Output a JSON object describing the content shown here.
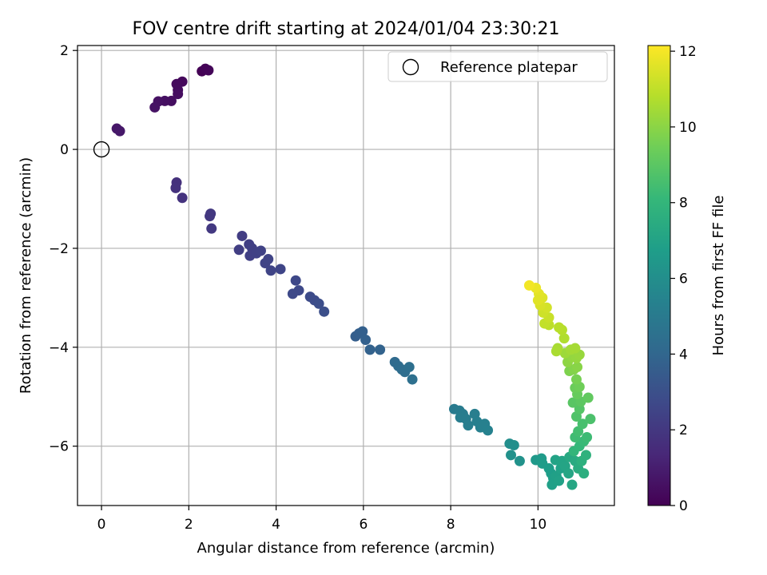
{
  "chart_data": {
    "type": "scatter",
    "title": "FOV centre drift starting at 2024/01/04 23:30:21",
    "xlabel": "Angular distance from reference (arcmin)",
    "ylabel": "Rotation from reference (arcmin)",
    "xlim": [
      -0.55,
      11.75
    ],
    "ylim": [
      -7.2,
      2.1
    ],
    "xticks": [
      0,
      2,
      4,
      6,
      8,
      10
    ],
    "yticks": [
      2,
      0,
      -2,
      -4,
      -6
    ],
    "grid": true,
    "legend": {
      "placement": "top-right",
      "label": "Reference platepar"
    },
    "reference_point": {
      "x": 0,
      "y": 0
    },
    "colorbar": {
      "label": "Hours from first FF file",
      "min": 0,
      "max": 12.15,
      "ticks": [
        0,
        2,
        4,
        6,
        8,
        10,
        12
      ],
      "colormap": [
        "#440154",
        "#482878",
        "#3e4989",
        "#31688e",
        "#26828e",
        "#1f9e89",
        "#35b779",
        "#6ece58",
        "#b5de2b",
        "#fde725"
      ]
    },
    "points": [
      {
        "x": 2.3,
        "y": 1.58,
        "c": 0.05
      },
      {
        "x": 2.38,
        "y": 1.63,
        "c": 0.1
      },
      {
        "x": 2.45,
        "y": 1.6,
        "c": 0.15
      },
      {
        "x": 1.85,
        "y": 1.37,
        "c": 0.25
      },
      {
        "x": 1.72,
        "y": 1.32,
        "c": 0.3
      },
      {
        "x": 1.75,
        "y": 1.2,
        "c": 0.35
      },
      {
        "x": 1.75,
        "y": 1.12,
        "c": 0.4
      },
      {
        "x": 1.6,
        "y": 0.98,
        "c": 0.45
      },
      {
        "x": 1.45,
        "y": 0.98,
        "c": 0.5
      },
      {
        "x": 1.3,
        "y": 0.97,
        "c": 0.55
      },
      {
        "x": 1.22,
        "y": 0.85,
        "c": 0.6
      },
      {
        "x": 0.35,
        "y": 0.42,
        "c": 0.75
      },
      {
        "x": 0.42,
        "y": 0.37,
        "c": 0.8
      },
      {
        "x": 1.72,
        "y": -0.67,
        "c": 1.7
      },
      {
        "x": 1.7,
        "y": -0.78,
        "c": 1.75
      },
      {
        "x": 1.85,
        "y": -0.98,
        "c": 1.8
      },
      {
        "x": 2.5,
        "y": -1.3,
        "c": 2.0
      },
      {
        "x": 2.48,
        "y": -1.35,
        "c": 2.02
      },
      {
        "x": 2.52,
        "y": -1.6,
        "c": 2.05
      },
      {
        "x": 3.22,
        "y": -1.75,
        "c": 2.2
      },
      {
        "x": 3.15,
        "y": -2.03,
        "c": 2.25
      },
      {
        "x": 3.38,
        "y": -1.92,
        "c": 2.3
      },
      {
        "x": 3.45,
        "y": -2.0,
        "c": 2.32
      },
      {
        "x": 3.4,
        "y": -2.15,
        "c": 2.35
      },
      {
        "x": 3.55,
        "y": -2.1,
        "c": 2.38
      },
      {
        "x": 3.65,
        "y": -2.05,
        "c": 2.4
      },
      {
        "x": 3.75,
        "y": -2.3,
        "c": 2.45
      },
      {
        "x": 3.82,
        "y": -2.22,
        "c": 2.48
      },
      {
        "x": 3.88,
        "y": -2.45,
        "c": 2.5
      },
      {
        "x": 4.1,
        "y": -2.42,
        "c": 2.55
      },
      {
        "x": 4.45,
        "y": -2.65,
        "c": 2.65
      },
      {
        "x": 4.52,
        "y": -2.85,
        "c": 2.7
      },
      {
        "x": 4.38,
        "y": -2.92,
        "c": 2.72
      },
      {
        "x": 4.78,
        "y": -2.98,
        "c": 2.8
      },
      {
        "x": 4.88,
        "y": -3.05,
        "c": 2.85
      },
      {
        "x": 4.98,
        "y": -3.12,
        "c": 2.9
      },
      {
        "x": 5.1,
        "y": -3.28,
        "c": 2.95
      },
      {
        "x": 5.82,
        "y": -3.78,
        "c": 3.6
      },
      {
        "x": 5.9,
        "y": -3.72,
        "c": 3.65
      },
      {
        "x": 5.98,
        "y": -3.68,
        "c": 3.7
      },
      {
        "x": 6.05,
        "y": -3.85,
        "c": 3.75
      },
      {
        "x": 6.15,
        "y": -4.05,
        "c": 3.8
      },
      {
        "x": 6.38,
        "y": -4.05,
        "c": 3.85
      },
      {
        "x": 6.72,
        "y": -4.3,
        "c": 4.2
      },
      {
        "x": 6.8,
        "y": -4.38,
        "c": 4.25
      },
      {
        "x": 6.88,
        "y": -4.45,
        "c": 4.3
      },
      {
        "x": 6.95,
        "y": -4.5,
        "c": 4.35
      },
      {
        "x": 7.05,
        "y": -4.4,
        "c": 4.4
      },
      {
        "x": 7.12,
        "y": -4.65,
        "c": 4.45
      },
      {
        "x": 8.08,
        "y": -5.25,
        "c": 5.0
      },
      {
        "x": 8.2,
        "y": -5.28,
        "c": 5.05
      },
      {
        "x": 8.28,
        "y": -5.35,
        "c": 5.1
      },
      {
        "x": 8.22,
        "y": -5.42,
        "c": 5.12
      },
      {
        "x": 8.35,
        "y": -5.45,
        "c": 5.15
      },
      {
        "x": 8.4,
        "y": -5.58,
        "c": 5.18
      },
      {
        "x": 8.55,
        "y": -5.35,
        "c": 5.2
      },
      {
        "x": 8.6,
        "y": -5.5,
        "c": 5.25
      },
      {
        "x": 8.68,
        "y": -5.62,
        "c": 5.28
      },
      {
        "x": 8.78,
        "y": -5.55,
        "c": 5.3
      },
      {
        "x": 8.85,
        "y": -5.68,
        "c": 5.35
      },
      {
        "x": 9.35,
        "y": -5.95,
        "c": 6.0
      },
      {
        "x": 9.45,
        "y": -5.98,
        "c": 6.05
      },
      {
        "x": 9.38,
        "y": -6.18,
        "c": 6.1
      },
      {
        "x": 9.58,
        "y": -6.3,
        "c": 6.15
      },
      {
        "x": 9.95,
        "y": -6.28,
        "c": 6.5
      },
      {
        "x": 10.08,
        "y": -6.25,
        "c": 6.6
      },
      {
        "x": 10.1,
        "y": -6.35,
        "c": 6.65
      },
      {
        "x": 10.25,
        "y": -6.45,
        "c": 6.7
      },
      {
        "x": 10.3,
        "y": -6.55,
        "c": 6.75
      },
      {
        "x": 10.35,
        "y": -6.65,
        "c": 6.8
      },
      {
        "x": 10.32,
        "y": -6.78,
        "c": 6.85
      },
      {
        "x": 10.42,
        "y": -6.6,
        "c": 6.88
      },
      {
        "x": 10.48,
        "y": -6.7,
        "c": 6.92
      },
      {
        "x": 10.52,
        "y": -6.45,
        "c": 6.95
      },
      {
        "x": 10.4,
        "y": -6.28,
        "c": 7.0
      },
      {
        "x": 10.55,
        "y": -6.3,
        "c": 7.05
      },
      {
        "x": 10.62,
        "y": -6.4,
        "c": 7.1
      },
      {
        "x": 10.7,
        "y": -6.55,
        "c": 7.15
      },
      {
        "x": 10.78,
        "y": -6.78,
        "c": 7.2
      },
      {
        "x": 10.72,
        "y": -6.22,
        "c": 7.3
      },
      {
        "x": 10.85,
        "y": -6.3,
        "c": 7.4
      },
      {
        "x": 10.92,
        "y": -6.45,
        "c": 7.5
      },
      {
        "x": 11.05,
        "y": -6.55,
        "c": 7.6
      },
      {
        "x": 11.0,
        "y": -6.3,
        "c": 7.7
      },
      {
        "x": 11.1,
        "y": -6.18,
        "c": 7.8
      },
      {
        "x": 10.82,
        "y": -6.1,
        "c": 8.0
      },
      {
        "x": 10.95,
        "y": -6.0,
        "c": 8.1
      },
      {
        "x": 11.05,
        "y": -5.9,
        "c": 8.2
      },
      {
        "x": 11.12,
        "y": -5.82,
        "c": 8.3
      },
      {
        "x": 10.85,
        "y": -5.82,
        "c": 8.35
      },
      {
        "x": 10.92,
        "y": -5.7,
        "c": 8.45
      },
      {
        "x": 11.02,
        "y": -5.55,
        "c": 8.55
      },
      {
        "x": 11.2,
        "y": -5.45,
        "c": 8.65
      },
      {
        "x": 10.88,
        "y": -5.4,
        "c": 8.75
      },
      {
        "x": 10.95,
        "y": -5.25,
        "c": 8.85
      },
      {
        "x": 10.8,
        "y": -5.12,
        "c": 8.95
      },
      {
        "x": 10.98,
        "y": -5.1,
        "c": 9.05
      },
      {
        "x": 11.15,
        "y": -5.02,
        "c": 9.15
      },
      {
        "x": 10.9,
        "y": -4.95,
        "c": 9.25
      },
      {
        "x": 10.85,
        "y": -4.82,
        "c": 9.35
      },
      {
        "x": 10.95,
        "y": -4.8,
        "c": 9.45
      },
      {
        "x": 10.88,
        "y": -4.65,
        "c": 9.6
      },
      {
        "x": 10.72,
        "y": -4.48,
        "c": 9.75
      },
      {
        "x": 10.82,
        "y": -4.45,
        "c": 9.85
      },
      {
        "x": 10.9,
        "y": -4.4,
        "c": 9.95
      },
      {
        "x": 10.68,
        "y": -4.3,
        "c": 10.05
      },
      {
        "x": 10.78,
        "y": -4.2,
        "c": 10.15
      },
      {
        "x": 10.88,
        "y": -4.22,
        "c": 10.2
      },
      {
        "x": 10.95,
        "y": -4.15,
        "c": 10.25
      },
      {
        "x": 10.62,
        "y": -4.12,
        "c": 10.35
      },
      {
        "x": 10.75,
        "y": -4.05,
        "c": 10.45
      },
      {
        "x": 10.85,
        "y": -4.02,
        "c": 10.5
      },
      {
        "x": 10.45,
        "y": -4.02,
        "c": 10.55
      },
      {
        "x": 10.42,
        "y": -4.08,
        "c": 10.6
      },
      {
        "x": 10.6,
        "y": -3.82,
        "c": 10.7
      },
      {
        "x": 10.55,
        "y": -3.65,
        "c": 10.8
      },
      {
        "x": 10.48,
        "y": -3.6,
        "c": 10.85
      },
      {
        "x": 10.25,
        "y": -3.55,
        "c": 10.95
      },
      {
        "x": 10.15,
        "y": -3.52,
        "c": 11.05
      },
      {
        "x": 10.25,
        "y": -3.4,
        "c": 11.15
      },
      {
        "x": 10.12,
        "y": -3.3,
        "c": 11.25
      },
      {
        "x": 10.2,
        "y": -3.2,
        "c": 11.35
      },
      {
        "x": 10.05,
        "y": -3.15,
        "c": 11.45
      },
      {
        "x": 10.1,
        "y": -3.0,
        "c": 11.55
      },
      {
        "x": 10.02,
        "y": -2.92,
        "c": 11.65
      },
      {
        "x": 9.95,
        "y": -2.8,
        "c": 11.8
      },
      {
        "x": 9.8,
        "y": -2.75,
        "c": 11.95
      },
      {
        "x": 10.0,
        "y": -3.05,
        "c": 11.6
      }
    ]
  }
}
